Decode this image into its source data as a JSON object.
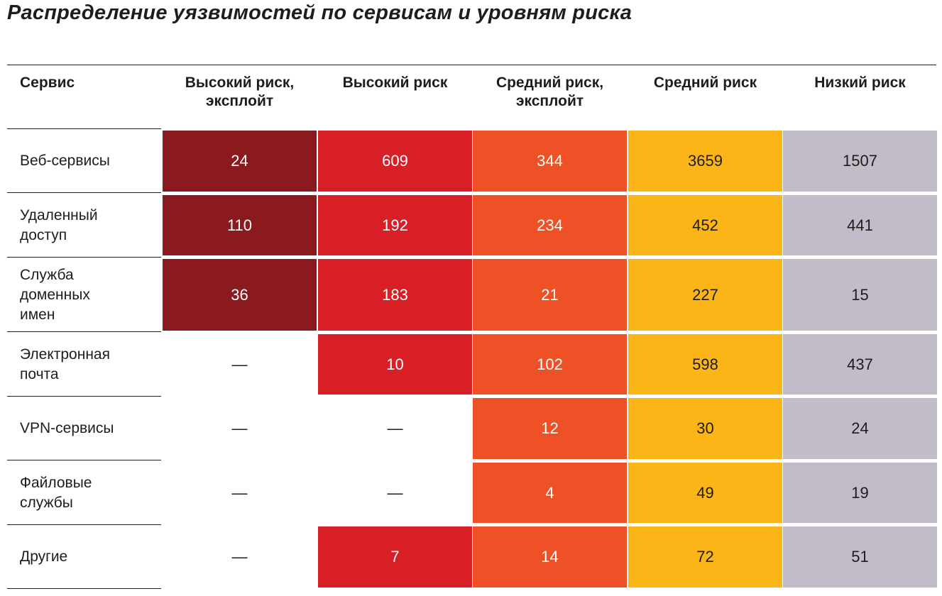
{
  "title": "Распределение уязвимостей по сервисам и уровням риска",
  "colors": {
    "high_exploit": "#8b1a1e",
    "high": "#d91f26",
    "medium_exploit": "#ee5125",
    "medium": "#fbb516",
    "low": "#c2bbc8",
    "text": "#1d1d1b"
  },
  "chart_data": {
    "type": "table",
    "title": "Распределение уязвимостей по сервисам и уровням риска",
    "row_header": "Сервис",
    "columns": [
      {
        "key": "high_exploit",
        "lines": [
          "Высокий риск,",
          "эксплойт"
        ]
      },
      {
        "key": "high",
        "lines": [
          "Высокий риск"
        ]
      },
      {
        "key": "medium_exploit",
        "lines": [
          "Средний риск,",
          "эксплойт"
        ]
      },
      {
        "key": "medium",
        "lines": [
          "Средний риск"
        ]
      },
      {
        "key": "low",
        "lines": [
          "Низкий риск"
        ]
      }
    ],
    "empty_symbol": "—",
    "rows": [
      {
        "lines": [
          "Веб-сервисы"
        ],
        "values": [
          24,
          609,
          344,
          3659,
          1507
        ]
      },
      {
        "lines": [
          "Удаленный",
          "доступ"
        ],
        "values": [
          110,
          192,
          234,
          452,
          441
        ]
      },
      {
        "lines": [
          "Служба",
          "доменных",
          "имен"
        ],
        "values": [
          36,
          183,
          21,
          227,
          15
        ]
      },
      {
        "lines": [
          "Электронная",
          "почта"
        ],
        "values": [
          null,
          10,
          102,
          598,
          437
        ]
      },
      {
        "lines": [
          "VPN-сервисы"
        ],
        "values": [
          null,
          null,
          12,
          30,
          24
        ]
      },
      {
        "lines": [
          "Файловые",
          "службы"
        ],
        "values": [
          null,
          null,
          4,
          49,
          19
        ]
      },
      {
        "lines": [
          "Другие"
        ],
        "values": [
          null,
          7,
          14,
          72,
          51
        ]
      }
    ]
  }
}
